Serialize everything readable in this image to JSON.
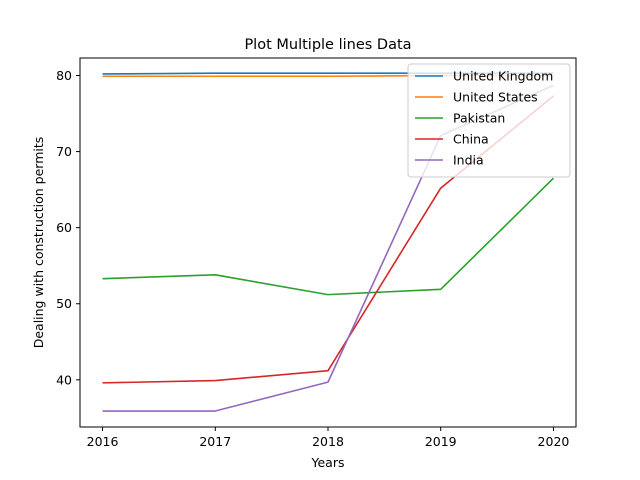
{
  "chart_data": {
    "type": "line",
    "title": "Plot Multiple lines Data",
    "xlabel": "Years",
    "ylabel": "Dealing with construction permits",
    "x": [
      2016,
      2017,
      2018,
      2019,
      2020
    ],
    "x_tick_labels": [
      "2016",
      "2017",
      "2018",
      "2019",
      "2020"
    ],
    "y_ticks": [
      40,
      50,
      60,
      70,
      80
    ],
    "y_tick_labels": [
      "40",
      "50",
      "60",
      "70",
      "80"
    ],
    "xlim": [
      2015.8,
      2020.2
    ],
    "ylim": [
      33.8,
      82.3
    ],
    "grid": false,
    "legend": "top-right",
    "series": [
      {
        "name": "United Kingdom",
        "color": "#1f77b4",
        "values": [
          80.2,
          80.3,
          80.3,
          80.3,
          80.3
        ]
      },
      {
        "name": "United States",
        "color": "#ff7f0e",
        "values": [
          79.9,
          79.9,
          79.9,
          80.0,
          80.0
        ]
      },
      {
        "name": "Pakistan",
        "color": "#2ca02c",
        "values": [
          53.3,
          53.8,
          51.2,
          51.9,
          66.5
        ]
      },
      {
        "name": "China",
        "color": "#d62728",
        "values": [
          39.6,
          39.9,
          41.2,
          65.2,
          77.3
        ]
      },
      {
        "name": "India",
        "color": "#9467bd",
        "values": [
          35.9,
          35.9,
          39.7,
          72.1,
          78.7
        ]
      }
    ]
  }
}
